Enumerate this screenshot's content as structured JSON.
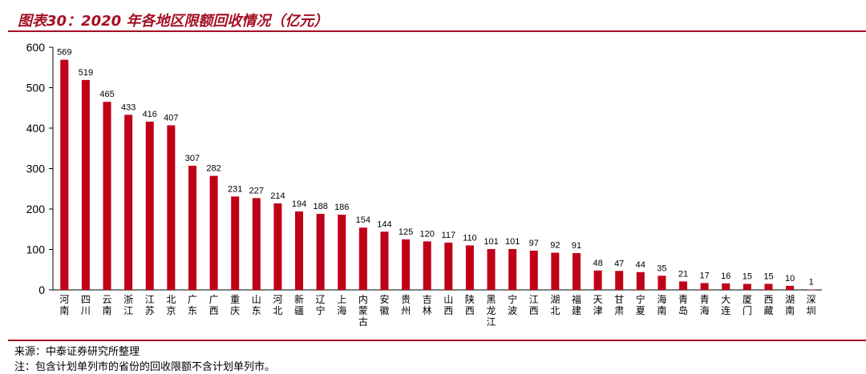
{
  "title": "图表30：2020 年各地区限额回收情况（亿元）",
  "source": "来源：中泰证券研究所整理",
  "note": "注：包含计划单列市的省份的回收限额不含计划单列市。",
  "chart_data": {
    "type": "bar",
    "categories": [
      "河南",
      "四川",
      "云南",
      "浙江",
      "江苏",
      "北京",
      "广东",
      "广西",
      "重庆",
      "山东",
      "河北",
      "新疆",
      "辽宁",
      "上海",
      "内蒙古",
      "安徽",
      "贵州",
      "吉林",
      "山西",
      "陕西",
      "黑龙江",
      "宁波",
      "江西",
      "湖北",
      "福建",
      "天津",
      "甘肃",
      "宁夏",
      "海南",
      "青岛",
      "青海",
      "大连",
      "厦门",
      "西藏",
      "湖南",
      "深圳"
    ],
    "values": [
      569,
      519,
      465,
      433,
      416,
      407,
      307,
      282,
      231,
      227,
      214,
      194,
      188,
      186,
      154,
      144,
      125,
      120,
      117,
      110,
      101,
      101,
      97,
      92,
      91,
      48,
      47,
      44,
      35,
      21,
      17,
      16,
      15,
      15,
      10,
      1
    ],
    "ylim": [
      0,
      600
    ],
    "yticks": [
      0,
      100,
      200,
      300,
      400,
      500,
      600
    ],
    "bar_color": "#c00018",
    "title_color": "#a50f22",
    "grid": false,
    "legend": "none"
  }
}
